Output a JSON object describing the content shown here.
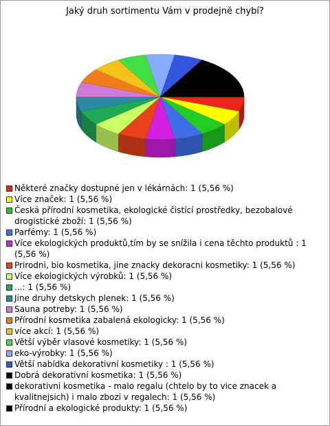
{
  "chart_data": {
    "type": "pie3d",
    "title": "Jaký druh sortimentu Vám v prodejně chybí?",
    "categories": [
      "Některé značky dostupné jen v lékárnách",
      "Více značek",
      "Česká přírodní kosmetika, ekologické čistící prostředky, bezobalové drogistické zboží",
      "Parfémy",
      "Více ekologických produktů,tím by se snížila i cena těchto produktů ",
      "Prirodni, bio kosmetika, jine znacky dekoracni kosmetiky",
      "Více ekologických výrobků",
      "...",
      "Jine druhy detskych plenek",
      "Sauna potreby",
      "Přírodní kosmetika zabalená ekologicky",
      "více akcí",
      "Větší výběr vlasové kosmetiky",
      "eko-výrobky",
      "Větší nabídka dekorativní kosmetiky ",
      "Dobrá dekorativní kosmetika",
      "dekorativni kosmetika - malo regalu (chtelo by to vice znacek a kvalitnejsich) i malo zbozi v regalech",
      "Přírodní a ekologické produkty"
    ],
    "values": [
      1,
      1,
      1,
      1,
      1,
      1,
      1,
      1,
      1,
      1,
      1,
      1,
      1,
      1,
      1,
      1,
      1,
      1
    ],
    "value_labels": [
      "1 (5,56 %)",
      "1 (5,56 %)",
      "1 (5,56 %)",
      "1 (5,56 %)",
      "1 (5,56 %)",
      "1 (5,56 %)",
      "1 (5,56 %)",
      "1 (5,56 %)",
      "1 (5,56 %)",
      "1 (5,56 %)",
      "1 (5,56 %)",
      "1 (5,56 %)",
      "1 (5,56 %)",
      "1 (5,56 %)",
      "1 (5,56 %)",
      "1 (5,56 %)",
      "1 (5,56 %)",
      "1 (5,56 %)"
    ],
    "colors": [
      "#e8251b",
      "#ffff00",
      "#22cc22",
      "#3f6fe8",
      "#d21fe0",
      "#e8421a",
      "#ccff66",
      "#1faa55",
      "#2a8aa0",
      "#d278d8",
      "#ee7d1a",
      "#f2c21a",
      "#44dd44",
      "#88aaff",
      "#3355dd",
      "#000000",
      "#000000",
      "#000000"
    ]
  }
}
